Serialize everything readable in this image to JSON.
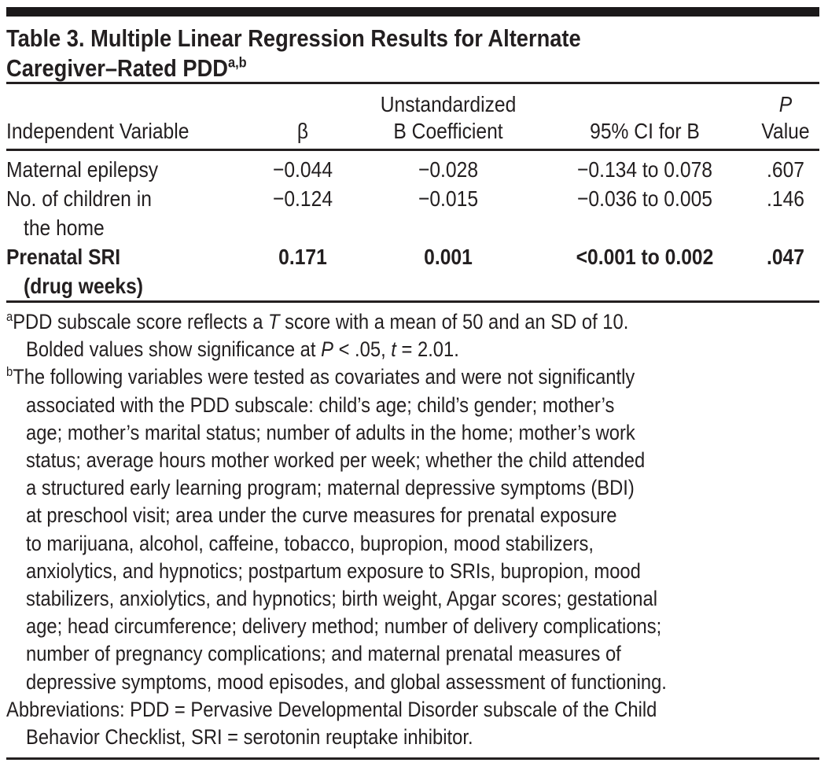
{
  "colors": {
    "ink": "#231f20",
    "background": "#ffffff"
  },
  "title": {
    "line1": "Table 3. Multiple Linear Regression Results for Alternate",
    "line2": "Caregiver–Rated PDD",
    "superscript": "a,b"
  },
  "table": {
    "headers": {
      "col1": "Independent Variable",
      "col2": "β",
      "col3_line1": "Unstandardized",
      "col3_line2": "B Coefficient",
      "col4": "95% CI for B",
      "col5_line1": "P",
      "col5_line2": "Value"
    },
    "rows": [
      {
        "variable_line1": "Maternal epilepsy",
        "variable_line2": "",
        "beta": "−0.044",
        "b_coefficient": "−0.028",
        "ci": "−0.134 to 0.078",
        "p_value": ".607"
      },
      {
        "variable_line1": "No. of children in",
        "variable_line2": "the home",
        "beta": "−0.124",
        "b_coefficient": "−0.015",
        "ci": "−0.036 to 0.005",
        "p_value": ".146"
      },
      {
        "variable_line1": "Prenatal SRI",
        "variable_line2": "(drug weeks)",
        "beta": "0.171",
        "b_coefficient": "0.001",
        "ci": "<0.001 to 0.002",
        "p_value": ".047"
      }
    ]
  },
  "footnotes": {
    "a": {
      "marker": "a",
      "line1_pre": "PDD subscale score reflects a ",
      "line1_italic": "T",
      "line1_post": " score with a mean of 50 and an SD of 10.",
      "line2_pre": "Bolded values show significance at ",
      "line2_italic1": "P",
      "line2_mid": " < .05, ",
      "line2_italic2": "t",
      "line2_post": " = 2.01."
    },
    "b": {
      "marker": "b",
      "lines": [
        "The following variables were tested as covariates and were not significantly",
        "associated with the PDD subscale: child’s age; child’s gender; mother’s",
        "age; mother’s marital status; number of adults in the home; mother’s work",
        "status; average hours mother worked per week; whether the child attended",
        "a structured early learning program; maternal depressive symptoms (BDI)",
        "at preschool visit; area under the curve measures for prenatal exposure",
        "to marijuana, alcohol, caffeine, tobacco, bupropion, mood stabilizers,",
        "anxiolytics, and hypnotics; postpartum exposure to SRIs, bupropion, mood",
        "stabilizers, anxiolytics, and hypnotics; birth weight, Apgar scores; gestational",
        "age; head circumference; delivery method; number of delivery complications;",
        "number of pregnancy complications; and maternal prenatal measures of",
        "depressive symptoms, mood episodes, and global assessment of functioning."
      ]
    },
    "abbreviations": {
      "line1": "Abbreviations: PDD = Pervasive Developmental Disorder subscale of the Child",
      "line2": "Behavior Checklist, SRI = serotonin reuptake inhibitor."
    }
  }
}
